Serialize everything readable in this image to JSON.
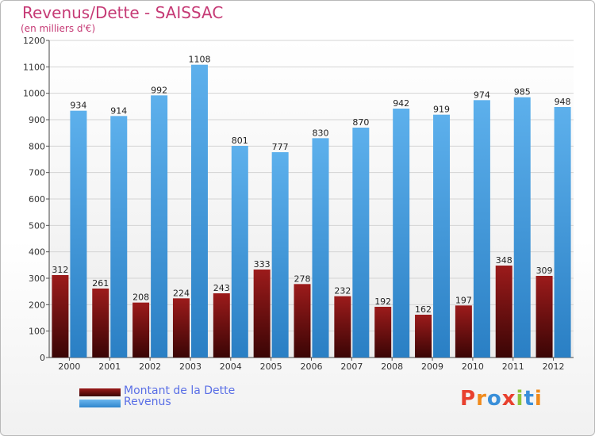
{
  "title": "Revenus/Dette - SAISSAC",
  "subtitle": "(en milliers d'€)",
  "logo": {
    "letters": [
      "P",
      "r",
      "o",
      "x",
      "i",
      "t",
      "i"
    ],
    "colors": [
      "#e8402e",
      "#f08a1c",
      "#3a8fd9",
      "#e8402e",
      "#8fc43a",
      "#3a8fd9",
      "#f08a1c"
    ]
  },
  "legend": [
    {
      "label": "Montant de la Dette",
      "color": "#7a1010"
    },
    {
      "label": "Revenus",
      "color": "#4a9fe0"
    }
  ],
  "chart_data": {
    "type": "bar",
    "categories": [
      "2000",
      "2001",
      "2002",
      "2003",
      "2004",
      "2005",
      "2006",
      "2007",
      "2008",
      "2009",
      "2010",
      "2011",
      "2012"
    ],
    "series": [
      {
        "name": "Montant de la Dette",
        "color": "#7a1010",
        "values": [
          312,
          261,
          208,
          224,
          243,
          333,
          278,
          232,
          192,
          162,
          197,
          348,
          309
        ]
      },
      {
        "name": "Revenus",
        "color": "#4a9fe0",
        "values": [
          934,
          914,
          992,
          1108,
          801,
          777,
          830,
          870,
          942,
          919,
          974,
          985,
          948
        ]
      }
    ],
    "ylim": [
      0,
      1200
    ],
    "yticks": [
      0,
      100,
      200,
      300,
      400,
      500,
      600,
      700,
      800,
      900,
      1000,
      1100,
      1200
    ],
    "grid": true
  }
}
